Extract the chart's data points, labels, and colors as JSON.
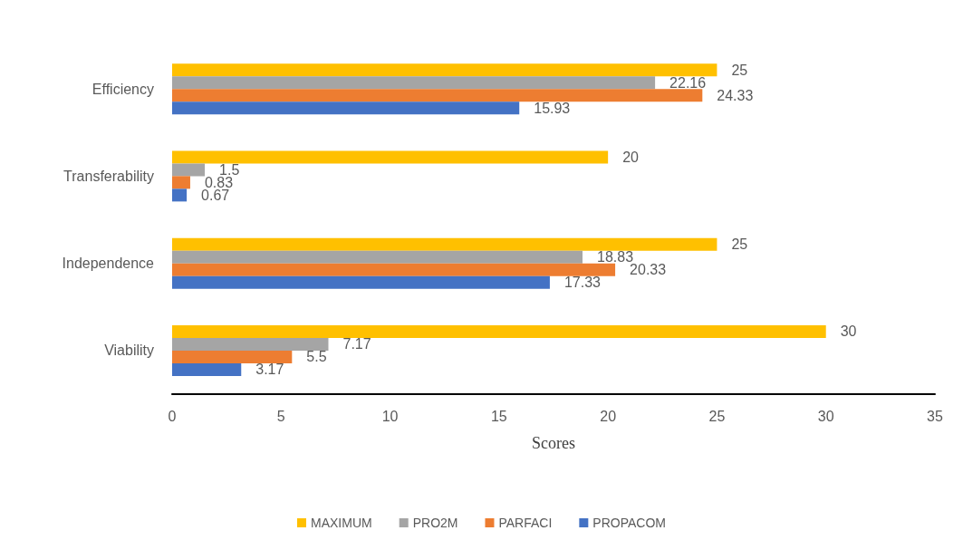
{
  "chart_data": {
    "type": "bar",
    "orientation": "horizontal",
    "xlabel": "Scores",
    "categories": [
      "Efficiency",
      "Transferability",
      "Independence",
      "Viability"
    ],
    "series": [
      {
        "name": "MAXIMUM",
        "color": "#ffc000",
        "values": [
          25,
          20,
          25,
          30
        ]
      },
      {
        "name": "PRO2M",
        "color": "#a5a5a5",
        "values": [
          22.16,
          1.5,
          18.83,
          7.17
        ]
      },
      {
        "name": "PARFACI",
        "color": "#ed7d31",
        "values": [
          24.33,
          0.83,
          20.33,
          5.5
        ]
      },
      {
        "name": "PROPACOM",
        "color": "#4472c4",
        "values": [
          15.93,
          0.67,
          17.33,
          3.17
        ]
      }
    ],
    "xlim": [
      0,
      35
    ],
    "xticks": [
      0,
      5,
      10,
      15,
      20,
      25,
      30,
      35
    ],
    "grid": false,
    "legend": "bottom",
    "data_labels": true
  }
}
